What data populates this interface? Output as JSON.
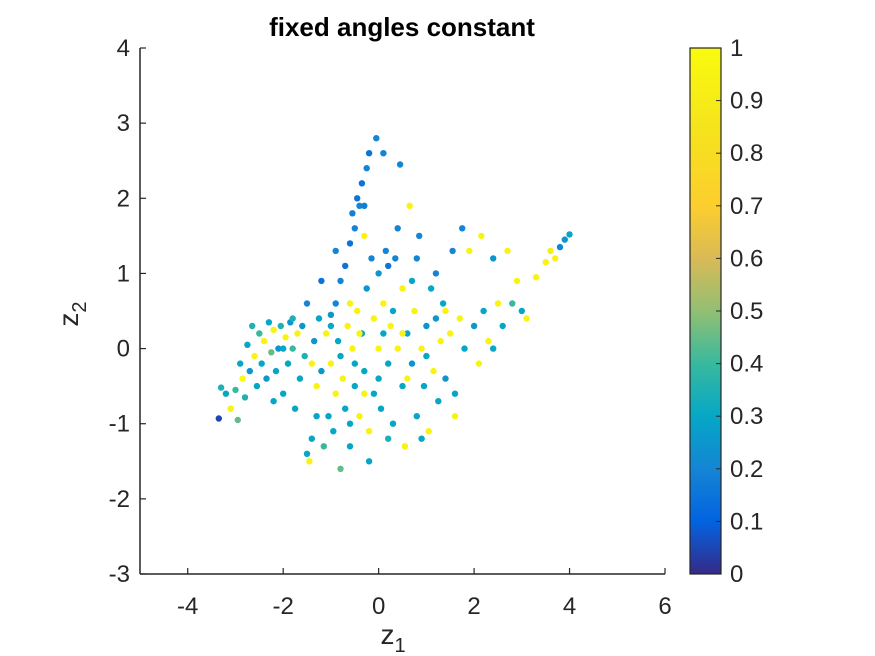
{
  "chart_data": {
    "type": "scatter",
    "title": "fixed angles constant",
    "xlabel": {
      "base": "z",
      "sub": "1"
    },
    "ylabel": {
      "base": "z",
      "sub": "2"
    },
    "xlim": [
      -5,
      6
    ],
    "ylim": [
      -3,
      4
    ],
    "xticks": [
      -4,
      -2,
      0,
      2,
      4,
      6
    ],
    "yticks": [
      -3,
      -2,
      -1,
      0,
      1,
      2,
      3,
      4
    ],
    "grid": false,
    "colorbar": {
      "colormap": "parula",
      "range": [
        0,
        1
      ],
      "ticks": [
        0,
        0.1,
        0.2,
        0.3,
        0.4,
        0.5,
        0.6,
        0.7,
        0.8,
        0.9,
        1
      ],
      "tick_labels": [
        "0",
        "0.1",
        "0.2",
        "0.3",
        "0.4",
        "0.5",
        "0.6",
        "0.7",
        "0.8",
        "0.9",
        "1"
      ]
    },
    "points": [
      [
        -3.35,
        -0.93,
        0.05
      ],
      [
        -3.3,
        -0.52,
        0.35
      ],
      [
        -3.2,
        -0.6,
        0.3
      ],
      [
        -3.1,
        -0.8,
        0.95
      ],
      [
        -3.0,
        -0.55,
        0.4
      ],
      [
        -2.95,
        -0.95,
        0.45
      ],
      [
        -2.9,
        -0.2,
        0.3
      ],
      [
        -2.85,
        -0.4,
        0.98
      ],
      [
        -2.8,
        -0.65,
        0.35
      ],
      [
        -2.75,
        0.05,
        0.3
      ],
      [
        -2.7,
        -0.3,
        0.25
      ],
      [
        -2.65,
        0.3,
        0.35
      ],
      [
        -2.6,
        -0.1,
        0.95
      ],
      [
        -2.55,
        -0.5,
        0.3
      ],
      [
        -2.5,
        0.2,
        0.4
      ],
      [
        -2.45,
        -0.2,
        0.3
      ],
      [
        -2.4,
        0.1,
        0.95
      ],
      [
        -2.35,
        -0.4,
        0.25
      ],
      [
        -2.3,
        0.35,
        0.3
      ],
      [
        -2.25,
        -0.05,
        0.45
      ],
      [
        -2.2,
        0.25,
        0.95
      ],
      [
        -2.15,
        -0.3,
        0.3
      ],
      [
        -2.1,
        0.0,
        0.25
      ],
      [
        -2.05,
        0.3,
        0.35
      ],
      [
        -2.0,
        -0.6,
        0.3
      ],
      [
        -1.95,
        0.15,
        0.95
      ],
      [
        -1.9,
        -0.2,
        0.3
      ],
      [
        -1.85,
        0.35,
        0.25
      ],
      [
        -1.8,
        0.0,
        0.4
      ],
      [
        -1.75,
        -0.8,
        0.3
      ],
      [
        -1.7,
        0.2,
        0.95
      ],
      [
        -1.65,
        -0.4,
        0.3
      ],
      [
        -1.6,
        0.3,
        0.25
      ],
      [
        -1.55,
        -0.1,
        0.35
      ],
      [
        -1.5,
        -1.4,
        0.3
      ],
      [
        -1.45,
        -1.5,
        0.95
      ],
      [
        -1.4,
        -1.2,
        0.3
      ],
      [
        -1.35,
        0.1,
        0.25
      ],
      [
        -1.3,
        -0.5,
        0.95
      ],
      [
        -1.25,
        0.4,
        0.3
      ],
      [
        -1.2,
        -0.3,
        0.25
      ],
      [
        -1.15,
        -1.3,
        0.4
      ],
      [
        -1.1,
        0.2,
        0.95
      ],
      [
        -1.05,
        -0.9,
        0.3
      ],
      [
        -1.0,
        0.45,
        0.25
      ],
      [
        -1.0,
        -0.2,
        0.95
      ],
      [
        -0.95,
        -1.1,
        0.3
      ],
      [
        -0.9,
        0.6,
        0.2
      ],
      [
        -0.9,
        -0.6,
        0.95
      ],
      [
        -0.85,
        0.1,
        0.3
      ],
      [
        -0.8,
        -1.6,
        0.45
      ],
      [
        -0.8,
        0.9,
        0.2
      ],
      [
        -0.75,
        -0.4,
        0.95
      ],
      [
        -0.7,
        1.1,
        0.15
      ],
      [
        -0.7,
        -0.8,
        0.3
      ],
      [
        -0.65,
        0.3,
        0.95
      ],
      [
        -0.6,
        1.4,
        0.15
      ],
      [
        -0.6,
        -1.0,
        0.3
      ],
      [
        -0.55,
        1.8,
        0.18
      ],
      [
        -0.55,
        0.0,
        0.95
      ],
      [
        -0.5,
        1.6,
        0.2
      ],
      [
        -0.5,
        -0.5,
        0.3
      ],
      [
        -0.45,
        2.0,
        0.15
      ],
      [
        -0.45,
        0.5,
        0.95
      ],
      [
        -0.4,
        1.9,
        0.2
      ],
      [
        -0.4,
        -0.9,
        0.95
      ],
      [
        -0.35,
        2.2,
        0.15
      ],
      [
        -0.35,
        0.2,
        0.3
      ],
      [
        -0.3,
        1.5,
        0.95
      ],
      [
        -0.3,
        -0.3,
        0.3
      ],
      [
        -0.25,
        2.4,
        0.2
      ],
      [
        -0.25,
        0.8,
        0.25
      ],
      [
        -0.2,
        2.6,
        0.15
      ],
      [
        -0.2,
        -1.1,
        0.95
      ],
      [
        -0.15,
        1.2,
        0.2
      ],
      [
        -0.1,
        0.4,
        0.95
      ],
      [
        -0.1,
        -0.6,
        0.3
      ],
      [
        -0.05,
        2.8,
        0.2
      ],
      [
        0.0,
        0.0,
        0.95
      ],
      [
        0.0,
        1.0,
        0.25
      ],
      [
        0.05,
        -0.8,
        0.3
      ],
      [
        0.1,
        2.6,
        0.2
      ],
      [
        0.1,
        0.6,
        0.95
      ],
      [
        0.15,
        1.3,
        0.2
      ],
      [
        0.2,
        -0.2,
        0.3
      ],
      [
        0.2,
        1.1,
        0.15
      ],
      [
        0.25,
        0.3,
        0.95
      ],
      [
        0.3,
        -1.0,
        0.3
      ],
      [
        0.35,
        1.2,
        0.2
      ],
      [
        0.4,
        0.0,
        0.95
      ],
      [
        0.45,
        2.45,
        0.2
      ],
      [
        0.5,
        -0.5,
        0.3
      ],
      [
        0.5,
        0.8,
        0.95
      ],
      [
        0.55,
        -1.3,
        0.95
      ],
      [
        0.6,
        0.2,
        0.3
      ],
      [
        0.65,
        1.9,
        0.95
      ],
      [
        0.7,
        -0.2,
        0.25
      ],
      [
        0.75,
        0.5,
        0.95
      ],
      [
        0.8,
        -0.9,
        0.3
      ],
      [
        0.85,
        1.5,
        0.2
      ],
      [
        0.9,
        0.0,
        0.95
      ],
      [
        0.95,
        -0.5,
        0.3
      ],
      [
        1.0,
        0.3,
        0.25
      ],
      [
        1.05,
        -1.1,
        0.95
      ],
      [
        1.1,
        0.8,
        0.3
      ],
      [
        1.15,
        -0.3,
        0.95
      ],
      [
        1.2,
        0.4,
        0.25
      ],
      [
        1.25,
        -0.7,
        0.3
      ],
      [
        1.3,
        0.1,
        0.95
      ],
      [
        1.35,
        0.6,
        0.3
      ],
      [
        1.4,
        -0.4,
        0.25
      ],
      [
        1.5,
        0.2,
        0.95
      ],
      [
        1.55,
        1.3,
        0.2
      ],
      [
        1.6,
        -0.6,
        0.3
      ],
      [
        1.7,
        0.4,
        0.95
      ],
      [
        1.75,
        1.6,
        0.2
      ],
      [
        1.8,
        0.0,
        0.3
      ],
      [
        1.9,
        1.3,
        0.95
      ],
      [
        2.0,
        0.3,
        0.25
      ],
      [
        2.1,
        -0.2,
        0.95
      ],
      [
        2.15,
        1.5,
        0.95
      ],
      [
        2.2,
        0.5,
        0.3
      ],
      [
        2.3,
        0.1,
        0.95
      ],
      [
        2.4,
        1.2,
        0.25
      ],
      [
        2.5,
        0.6,
        0.95
      ],
      [
        2.6,
        0.3,
        0.3
      ],
      [
        2.7,
        1.3,
        0.95
      ],
      [
        2.8,
        0.6,
        0.4
      ],
      [
        2.9,
        0.9,
        0.95
      ],
      [
        3.0,
        0.5,
        0.3
      ],
      [
        3.1,
        0.4,
        0.95
      ],
      [
        3.3,
        0.95,
        0.95
      ],
      [
        3.5,
        1.15,
        0.95
      ],
      [
        3.6,
        1.3,
        0.9
      ],
      [
        3.7,
        1.2,
        0.95
      ],
      [
        3.8,
        1.35,
        0.2
      ],
      [
        3.9,
        1.45,
        0.25
      ],
      [
        4.0,
        1.52,
        0.3
      ],
      [
        0.4,
        1.6,
        0.2
      ],
      [
        -0.9,
        1.3,
        0.2
      ],
      [
        -1.2,
        0.9,
        0.15
      ],
      [
        0.8,
        1.2,
        0.2
      ],
      [
        -0.3,
        1.9,
        0.18
      ],
      [
        1.2,
        1.0,
        0.2
      ],
      [
        -1.5,
        0.6,
        0.2
      ],
      [
        -0.6,
        -1.3,
        0.3
      ],
      [
        0.2,
        -1.2,
        0.35
      ],
      [
        -1.3,
        -0.9,
        0.3
      ],
      [
        0.9,
        -1.2,
        0.3
      ],
      [
        -2.2,
        -0.7,
        0.3
      ],
      [
        -0.2,
        -1.5,
        0.3
      ],
      [
        1.6,
        -0.9,
        0.95
      ],
      [
        -1.8,
        0.4,
        0.35
      ],
      [
        0.1,
        0.2,
        0.3
      ],
      [
        -0.4,
        0.2,
        0.95
      ],
      [
        0.6,
        -0.4,
        0.95
      ],
      [
        -0.8,
        -0.1,
        0.3
      ],
      [
        1.0,
        -0.1,
        0.3
      ],
      [
        -0.3,
        -0.6,
        0.95
      ],
      [
        0.3,
        0.5,
        0.3
      ],
      [
        -1.0,
        0.3,
        0.3
      ],
      [
        1.4,
        0.5,
        0.95
      ],
      [
        -0.6,
        0.6,
        0.95
      ],
      [
        0.7,
        0.9,
        0.3
      ],
      [
        -1.4,
        -0.2,
        0.95
      ],
      [
        2.4,
        0.0,
        0.3
      ],
      [
        -2.0,
        0.0,
        0.3
      ],
      [
        0.0,
        -0.4,
        0.3
      ],
      [
        0.5,
        0.2,
        0.95
      ],
      [
        -0.5,
        -0.2,
        0.3
      ]
    ]
  }
}
